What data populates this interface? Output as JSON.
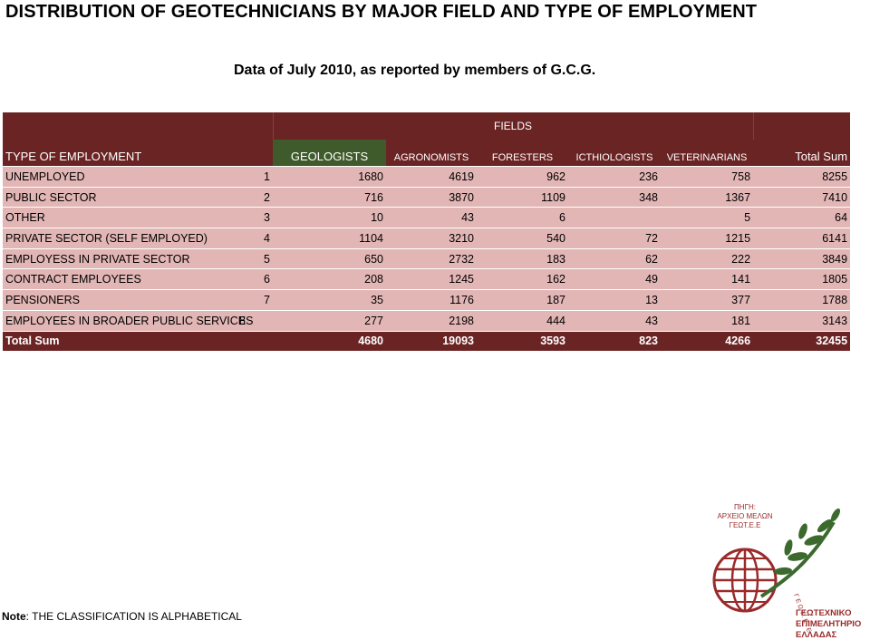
{
  "title": "DISTRIBUTION OF GEOTECHNICIANS BY MAJOR FIELD AND TYPE OF EMPLOYMENT",
  "subtitle": "Data of July 2010, as reported by members of G.C.G.",
  "table": {
    "fields_label": "FIELDS",
    "type_label": "TYPE OF EMPLOYMENT",
    "columns": [
      "GEOLOGISTS",
      "AGRONOMISTS",
      "FORESTERS",
      "ICTHIOLOGISTS",
      "VETERINARIANS"
    ],
    "total_label": "Total Sum",
    "rows": [
      {
        "category": "UNEMPLOYED",
        "num": "1",
        "values": [
          "1680",
          "4619",
          "962",
          "236",
          "758"
        ],
        "total": "8255"
      },
      {
        "category": "PUBLIC SECTOR",
        "num": "2",
        "values": [
          "716",
          "3870",
          "1109",
          "348",
          "1367"
        ],
        "total": "7410"
      },
      {
        "category": "OTHER",
        "num": "3",
        "values": [
          "10",
          "43",
          "6",
          "",
          "5"
        ],
        "total": "64"
      },
      {
        "category": "PRIVATE SECTOR (SELF EMPLOYED)",
        "num": "4",
        "values": [
          "1104",
          "3210",
          "540",
          "72",
          "1215"
        ],
        "total": "6141"
      },
      {
        "category": "EMPLOYESS IN PRIVATE SECTOR",
        "num": "5",
        "values": [
          "650",
          "2732",
          "183",
          "62",
          "222"
        ],
        "total": "3849"
      },
      {
        "category": "CONTRACT EMPLOYEES",
        "num": "6",
        "values": [
          "208",
          "1245",
          "162",
          "49",
          "141"
        ],
        "total": "1805"
      },
      {
        "category": "PENSIONERS",
        "num": "7",
        "values": [
          "35",
          "1176",
          "187",
          "13",
          "377"
        ],
        "total": "1788"
      },
      {
        "category": "EMPLOYEES IN BROADER PUBLIC SERVICES",
        "num": "8",
        "values": [
          "277",
          "2198",
          "444",
          "43",
          "181"
        ],
        "total": "3143"
      }
    ],
    "totals": {
      "label": "Total Sum",
      "values": [
        "4680",
        "19093",
        "3593",
        "823",
        "4266"
      ],
      "total": "32455"
    }
  },
  "note": {
    "label": "Note",
    "text": ": THE CLASSIFICATION IS ALPHABETICAL"
  },
  "logo": {
    "source_lines": [
      "ΠΗΓΗ:",
      "ΑΡΧΕΙΟ ΜΕΛΩΝ",
      "ΓΕΩΤ.Ε.Ε"
    ],
    "ring_text": "Γ Ε Ω Τ . Ε . Ε .",
    "name_lines": [
      "ΓΕΩΤΕΧΝΙΚΟ",
      "ΕΠΙΜΕΛΗΤΗΡΙΟ",
      "ΕΛΛΑΔΑΣ"
    ]
  },
  "colors": {
    "header": "#6b2424",
    "geologists_header": "#3f5b2b",
    "row_fill": "#e3b6b6",
    "logo_red": "#9b2a2a",
    "logo_green": "#3c6a2e"
  }
}
